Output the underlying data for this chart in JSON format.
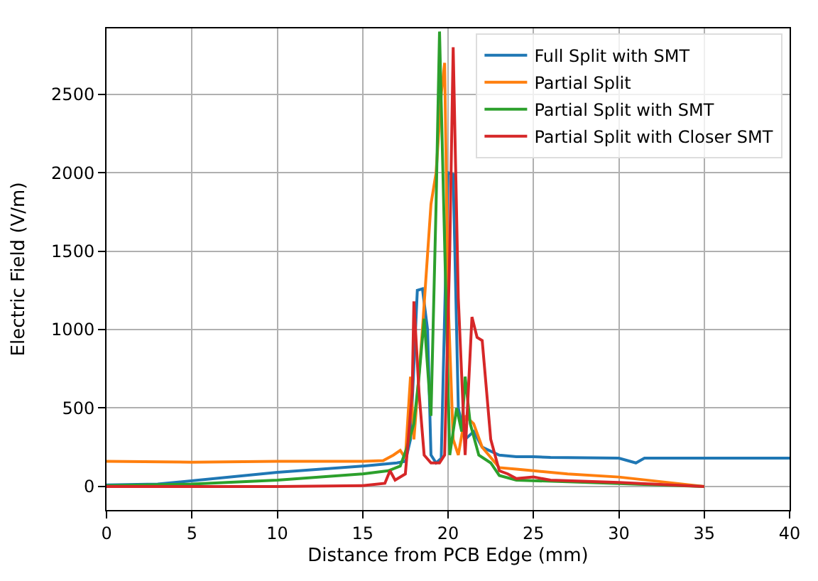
{
  "chart_data": {
    "type": "line",
    "xlabel": "Distance from PCB Edge (mm)",
    "ylabel": "Electric Field (V/m)",
    "xlim": [
      0,
      40
    ],
    "xticks": [
      0,
      5,
      10,
      15,
      20,
      25,
      30,
      35,
      40
    ],
    "ylim": [
      -150,
      2920
    ],
    "yticks": [
      0,
      500,
      1000,
      1500,
      2000,
      2500
    ],
    "grid": true,
    "legend": "top right",
    "marker": "none",
    "line_style": "solid",
    "series": [
      {
        "name": "Full Split with SMT",
        "color": "#1f77b4",
        "x": [
          0,
          3,
          10,
          15,
          17,
          17.5,
          17.8,
          18.2,
          18.5,
          18.8,
          19.0,
          19.3,
          19.6,
          20.0,
          20.3,
          20.6,
          21,
          21.5,
          22,
          23,
          24,
          25,
          26,
          30,
          31,
          31.5,
          35,
          38,
          40
        ],
        "values": [
          10,
          15,
          90,
          130,
          150,
          160,
          300,
          1250,
          1260,
          1000,
          200,
          150,
          180,
          2000,
          1990,
          500,
          300,
          350,
          250,
          200,
          190,
          190,
          185,
          180,
          150,
          180,
          180,
          180,
          180
        ]
      },
      {
        "name": "Partial Split",
        "color": "#ff7f0e",
        "x": [
          0,
          5,
          10,
          15,
          16.2,
          16.8,
          17.2,
          17.5,
          17.8,
          18.0,
          18.5,
          19,
          19.3,
          19.6,
          19.8,
          20.0,
          20.3,
          20.6,
          21,
          21.5,
          22,
          23,
          24,
          25,
          27,
          30,
          35
        ],
        "values": [
          160,
          155,
          160,
          160,
          165,
          200,
          230,
          180,
          700,
          300,
          1000,
          1800,
          2000,
          2500,
          2700,
          1200,
          300,
          200,
          450,
          400,
          250,
          120,
          110,
          100,
          80,
          60,
          0
        ]
      },
      {
        "name": "Partial Split with SMT",
        "color": "#2ca02c",
        "x": [
          0,
          5,
          10,
          15,
          16.5,
          17.2,
          17.6,
          18.0,
          18.3,
          18.6,
          19.0,
          19.3,
          19.5,
          19.7,
          20.1,
          20.5,
          20.8,
          21,
          21.3,
          21.8,
          22.5,
          23,
          24,
          27,
          35
        ],
        "values": [
          5,
          15,
          40,
          80,
          100,
          130,
          250,
          400,
          700,
          1070,
          450,
          1800,
          2900,
          2000,
          200,
          500,
          350,
          700,
          400,
          200,
          150,
          70,
          40,
          30,
          0
        ]
      },
      {
        "name": "Partial Split with Closer SMT",
        "color": "#d62728",
        "x": [
          0,
          10,
          15,
          16.3,
          16.6,
          16.9,
          17.5,
          17.9,
          18.0,
          18.3,
          18.6,
          19.0,
          19.5,
          19.8,
          20.1,
          20.3,
          20.6,
          21.0,
          21.4,
          21.7,
          22,
          22.5,
          23,
          23.5,
          24,
          25,
          26,
          30,
          35
        ],
        "values": [
          0,
          0,
          5,
          20,
          100,
          40,
          80,
          600,
          1180,
          600,
          200,
          150,
          150,
          200,
          1500,
          2800,
          1200,
          200,
          1080,
          950,
          930,
          300,
          100,
          80,
          50,
          60,
          40,
          25,
          0
        ]
      }
    ]
  }
}
